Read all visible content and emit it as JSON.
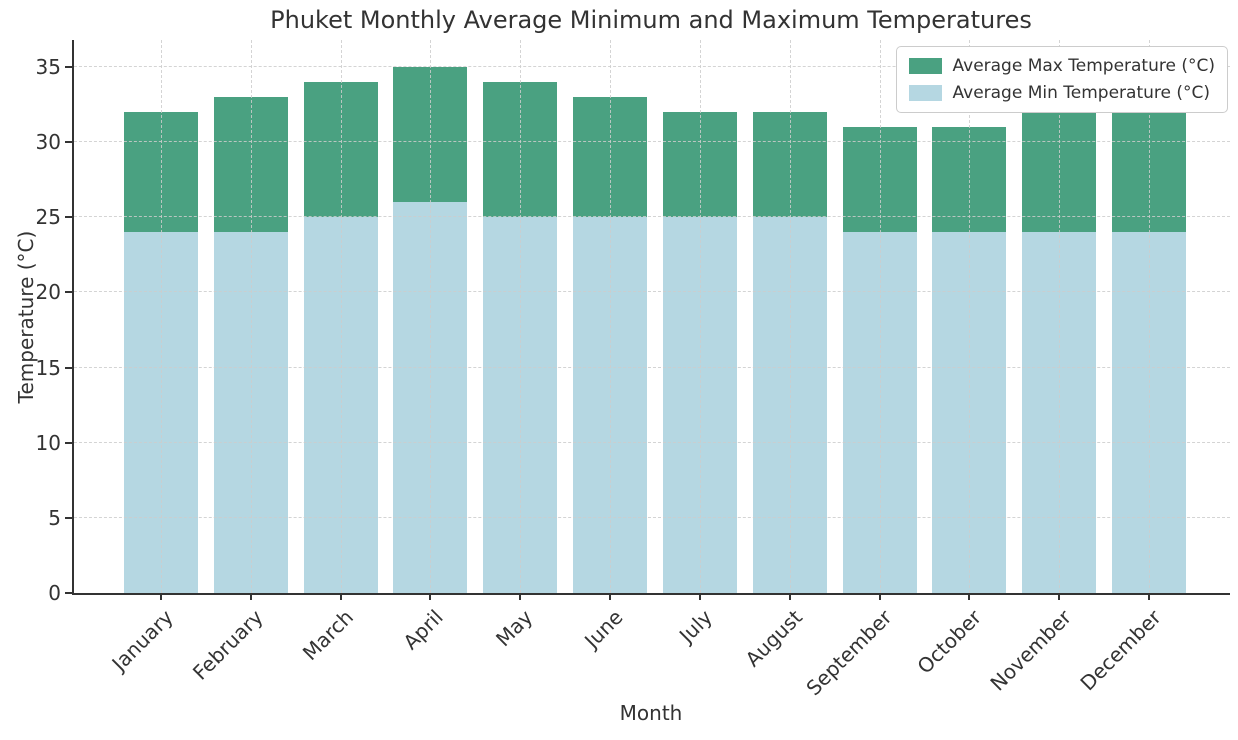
{
  "chart_data": {
    "type": "bar",
    "overlaid": true,
    "title": "Phuket Monthly Average Minimum and Maximum Temperatures",
    "xlabel": "Month",
    "ylabel": "Temperature (°C)",
    "categories": [
      "January",
      "February",
      "March",
      "April",
      "May",
      "June",
      "July",
      "August",
      "September",
      "October",
      "November",
      "December"
    ],
    "series": [
      {
        "name": "Average Max Temperature (°C)",
        "color": "#4aa181",
        "values": [
          32,
          33,
          34,
          35,
          34,
          33,
          32,
          32,
          31,
          31,
          32,
          32
        ]
      },
      {
        "name": "Average Min Temperature (°C)",
        "color": "#b5d7e2",
        "values": [
          24,
          24,
          25,
          26,
          25,
          25,
          25,
          25,
          24,
          24,
          24,
          24
        ]
      }
    ],
    "ylim": [
      0,
      36.8
    ],
    "yticks": [
      0,
      5,
      10,
      15,
      20,
      25,
      30,
      35
    ],
    "grid": true,
    "grid_style": "dashed",
    "legend_position": "upper right",
    "tick_label_rotation": 45
  },
  "colors": {
    "max_bar": "#4aa181",
    "min_bar": "#b5d7e2",
    "grid": "#cccccc",
    "text": "#333333",
    "spine": "#333333",
    "legend_border": "#cccccc",
    "background": "#ffffff"
  }
}
